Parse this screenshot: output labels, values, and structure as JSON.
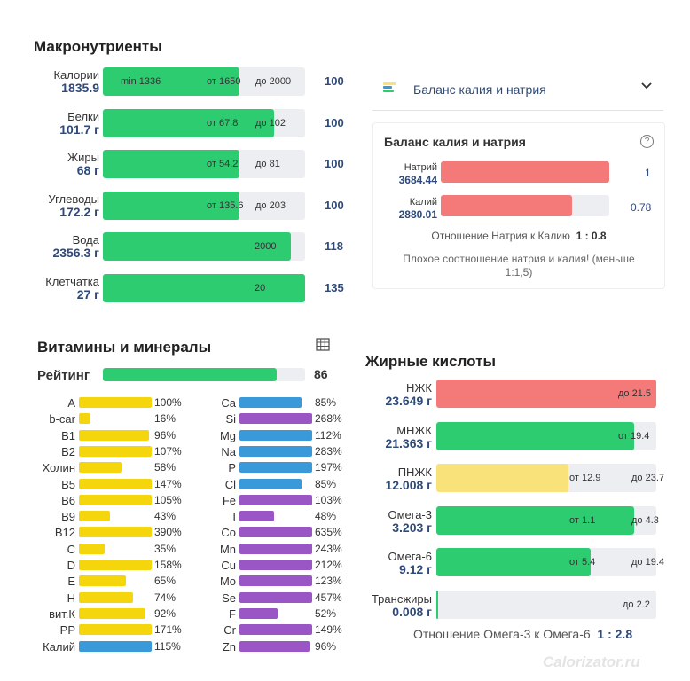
{
  "macro": {
    "title": "Макронутриенты",
    "rows": [
      {
        "name": "Калории",
        "value": "1835.9",
        "fill": 0.675,
        "m1": "min 1336",
        "m2": "от 1650",
        "m3": "до 2000",
        "pct": "100"
      },
      {
        "name": "Белки",
        "value": "101.7 г",
        "fill": 0.845,
        "m1": "",
        "m2": "от 67.8",
        "m3": "до 102",
        "pct": "100"
      },
      {
        "name": "Жиры",
        "value": "68 г",
        "fill": 0.675,
        "m1": "",
        "m2": "от 54.2",
        "m3": "до 81",
        "pct": "100"
      },
      {
        "name": "Углеводы",
        "value": "172.2 г",
        "fill": 0.675,
        "m1": "",
        "m2": "от 135.6",
        "m3": "до 203",
        "pct": "100"
      },
      {
        "name": "Вода",
        "value": "2356.3 г",
        "fill": 0.93,
        "m1": "",
        "m2": "2000",
        "m3": "",
        "pct": "118"
      },
      {
        "name": "Клетчатка",
        "value": "27 г",
        "fill": 1.0,
        "m1": "",
        "m2": "20",
        "m3": "",
        "pct": "135"
      }
    ]
  },
  "balance": {
    "dropdown_title": "Баланс калия и натрия",
    "card_title": "Баланс калия и натрия",
    "help_icon": "?",
    "sodium": {
      "name": "Натрий",
      "value": "3684.44",
      "ratio": "1",
      "fill": 1.0
    },
    "potassium": {
      "name": "Калий",
      "value": "2880.01",
      "ratio": "0.78",
      "fill": 0.78
    },
    "ratio_label": "Отношение Натрия к Калию",
    "ratio_value": "1 : 0.8",
    "warning": "Плохое соотношение натрия и калия! (меньше 1:1,5)"
  },
  "vitamins": {
    "title": "Витамины и минералы",
    "rating_label": "Рейтинг",
    "rating_value": "86",
    "rating_fill": 0.86,
    "left": [
      {
        "name": "A",
        "pct": "100%",
        "fill": 1.0,
        "color": "#f5d60d"
      },
      {
        "name": "b-car",
        "pct": "16%",
        "fill": 0.16,
        "color": "#f5d60d"
      },
      {
        "name": "B1",
        "pct": "96%",
        "fill": 0.96,
        "color": "#f5d60d"
      },
      {
        "name": "B2",
        "pct": "107%",
        "fill": 1.0,
        "color": "#f5d60d"
      },
      {
        "name": "Холин",
        "pct": "58%",
        "fill": 0.58,
        "color": "#f5d60d"
      },
      {
        "name": "B5",
        "pct": "147%",
        "fill": 1.0,
        "color": "#f5d60d"
      },
      {
        "name": "B6",
        "pct": "105%",
        "fill": 1.0,
        "color": "#f5d60d"
      },
      {
        "name": "B9",
        "pct": "43%",
        "fill": 0.43,
        "color": "#f5d60d"
      },
      {
        "name": "B12",
        "pct": "390%",
        "fill": 1.0,
        "color": "#f5d60d"
      },
      {
        "name": "C",
        "pct": "35%",
        "fill": 0.35,
        "color": "#f5d60d"
      },
      {
        "name": "D",
        "pct": "158%",
        "fill": 1.0,
        "color": "#f5d60d"
      },
      {
        "name": "E",
        "pct": "65%",
        "fill": 0.65,
        "color": "#f5d60d"
      },
      {
        "name": "H",
        "pct": "74%",
        "fill": 0.74,
        "color": "#f5d60d"
      },
      {
        "name": "вит.К",
        "pct": "92%",
        "fill": 0.92,
        "color": "#f5d60d"
      },
      {
        "name": "PP",
        "pct": "171%",
        "fill": 1.0,
        "color": "#f5d60d"
      },
      {
        "name": "Калий",
        "pct": "115%",
        "fill": 1.0,
        "color": "#3a9ad9"
      }
    ],
    "right": [
      {
        "name": "Ca",
        "pct": "85%",
        "fill": 0.85,
        "color": "#3a9ad9"
      },
      {
        "name": "Si",
        "pct": "268%",
        "fill": 1.0,
        "color": "#9a56c4"
      },
      {
        "name": "Mg",
        "pct": "112%",
        "fill": 1.0,
        "color": "#3a9ad9"
      },
      {
        "name": "Na",
        "pct": "283%",
        "fill": 1.0,
        "color": "#3a9ad9"
      },
      {
        "name": "P",
        "pct": "197%",
        "fill": 1.0,
        "color": "#3a9ad9"
      },
      {
        "name": "Cl",
        "pct": "85%",
        "fill": 0.85,
        "color": "#3a9ad9"
      },
      {
        "name": "Fe",
        "pct": "103%",
        "fill": 1.0,
        "color": "#9a56c4"
      },
      {
        "name": "I",
        "pct": "48%",
        "fill": 0.48,
        "color": "#9a56c4"
      },
      {
        "name": "Co",
        "pct": "635%",
        "fill": 1.0,
        "color": "#9a56c4"
      },
      {
        "name": "Mn",
        "pct": "243%",
        "fill": 1.0,
        "color": "#9a56c4"
      },
      {
        "name": "Cu",
        "pct": "212%",
        "fill": 1.0,
        "color": "#9a56c4"
      },
      {
        "name": "Mo",
        "pct": "123%",
        "fill": 1.0,
        "color": "#9a56c4"
      },
      {
        "name": "Se",
        "pct": "457%",
        "fill": 1.0,
        "color": "#9a56c4"
      },
      {
        "name": "F",
        "pct": "52%",
        "fill": 0.52,
        "color": "#9a56c4"
      },
      {
        "name": "Cr",
        "pct": "149%",
        "fill": 1.0,
        "color": "#9a56c4"
      },
      {
        "name": "Zn",
        "pct": "96%",
        "fill": 0.96,
        "color": "#9a56c4"
      }
    ]
  },
  "fatty": {
    "title": "Жирные кислоты",
    "rows": [
      {
        "name": "НЖК",
        "value": "23.649 г",
        "fill": 1.0,
        "color": "#f47a7a",
        "m1": "",
        "m2": "до 21.5"
      },
      {
        "name": "МНЖК",
        "value": "21.363 г",
        "fill": 0.9,
        "color": "#2ecc71",
        "m1": "",
        "m2": "от 19.4"
      },
      {
        "name": "ПНЖК",
        "value": "12.008 г",
        "fill": 0.6,
        "color": "#f9e27a",
        "m1": "от 12.9",
        "m2": "до 23.7"
      },
      {
        "name": "Омега-3",
        "value": "3.203 г",
        "fill": 0.9,
        "color": "#2ecc71",
        "m1": "от 1.1",
        "m2": "до 4.3"
      },
      {
        "name": "Омега-6",
        "value": "9.12 г",
        "fill": 0.7,
        "color": "#2ecc71",
        "m1": "от 5.4",
        "m2": "до 19.4"
      },
      {
        "name": "Трансжиры",
        "value": "0.008 г",
        "fill": 0.01,
        "color": "#2ecc71",
        "m1": "",
        "m2": "до 2.2"
      }
    ],
    "ratio_label": "Отношение Омега-3 к Омега-6",
    "ratio_value": "1 : 2.8"
  },
  "watermark": "Calorizator.ru"
}
